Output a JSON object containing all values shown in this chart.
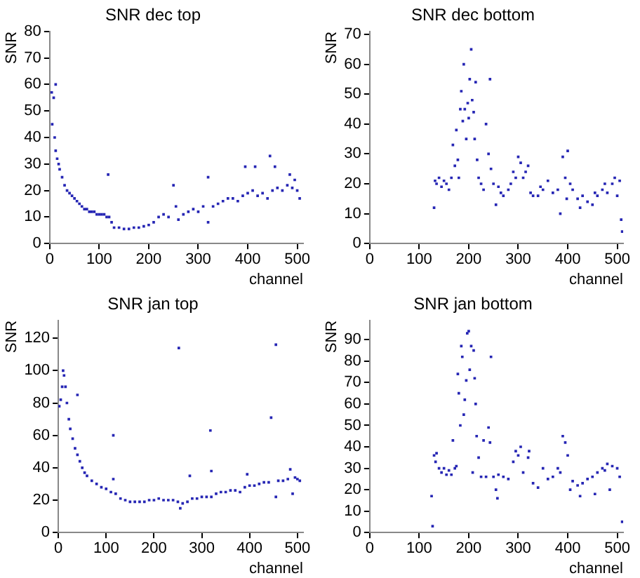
{
  "chart_data": [
    {
      "type": "scatter",
      "title": "SNR dec top",
      "xlabel": "channel",
      "ylabel": "SNR",
      "xlim": [
        0,
        512
      ],
      "xticks": [
        0,
        100,
        200,
        300,
        400,
        500
      ],
      "ylim": [
        0,
        80
      ],
      "yticks": [
        0,
        10,
        20,
        30,
        40,
        50,
        60,
        70,
        80
      ],
      "marker": "square",
      "series": [
        {
          "color": "#2626b4",
          "x": [
            4,
            5,
            8,
            10,
            12,
            12,
            15,
            18,
            20,
            25,
            30,
            35,
            40,
            45,
            50,
            55,
            60,
            65,
            70,
            75,
            80,
            85,
            90,
            95,
            100,
            105,
            110,
            115,
            118,
            120,
            125,
            130,
            140,
            150,
            160,
            170,
            180,
            190,
            200,
            210,
            220,
            230,
            240,
            250,
            255,
            260,
            270,
            280,
            290,
            300,
            310,
            320,
            320,
            330,
            340,
            350,
            360,
            370,
            380,
            390,
            395,
            400,
            410,
            415,
            420,
            430,
            440,
            445,
            450,
            455,
            460,
            470,
            480,
            485,
            490,
            495,
            500,
            505
          ],
          "values": [
            57,
            45,
            55,
            40,
            60,
            35,
            32,
            30,
            28,
            25,
            22,
            20,
            19,
            18,
            17,
            16,
            15,
            14,
            13,
            13,
            12,
            12,
            12,
            11,
            11,
            11,
            11,
            10,
            26,
            10,
            8,
            6,
            6,
            5.5,
            5.5,
            6,
            6,
            6.5,
            7,
            8,
            10,
            11,
            10,
            22,
            14,
            9,
            11,
            12,
            13,
            12,
            14,
            25,
            8,
            14,
            15,
            16,
            17,
            17,
            16,
            18,
            29,
            19,
            20,
            29,
            18,
            19,
            17,
            33,
            20,
            29,
            21,
            20,
            22,
            26,
            21,
            24,
            20,
            17
          ]
        }
      ]
    },
    {
      "type": "scatter",
      "title": "SNR dec bottom",
      "xlabel": "channel",
      "ylabel": "SNR",
      "xlim": [
        0,
        512
      ],
      "xticks": [
        0,
        100,
        200,
        300,
        400,
        500
      ],
      "ylim": [
        0,
        71
      ],
      "yticks": [
        0,
        10,
        20,
        30,
        40,
        50,
        60,
        70
      ],
      "marker": "square",
      "series": [
        {
          "color": "#2626b4",
          "x": [
            130,
            132,
            135,
            140,
            145,
            150,
            155,
            160,
            165,
            168,
            172,
            175,
            178,
            180,
            183,
            185,
            188,
            190,
            192,
            195,
            198,
            200,
            202,
            205,
            207,
            210,
            212,
            214,
            217,
            220,
            225,
            230,
            235,
            240,
            243,
            245,
            250,
            255,
            260,
            265,
            270,
            280,
            285,
            290,
            295,
            300,
            305,
            310,
            315,
            320,
            325,
            330,
            340,
            345,
            350,
            360,
            370,
            380,
            385,
            390,
            395,
            398,
            400,
            405,
            410,
            420,
            425,
            430,
            440,
            450,
            455,
            460,
            470,
            475,
            480,
            490,
            495,
            500,
            505,
            508,
            510
          ],
          "values": [
            12,
            21,
            20,
            22,
            19,
            21,
            20,
            18,
            22,
            33,
            26,
            38,
            28,
            22,
            45,
            51,
            41,
            60,
            45,
            35,
            47,
            42,
            55,
            65,
            48,
            44,
            35,
            54,
            28,
            22,
            20,
            18,
            40,
            30,
            55,
            25,
            20,
            13,
            19,
            17,
            16,
            18,
            20,
            24,
            22,
            29,
            27,
            22,
            24,
            26,
            17,
            16,
            16,
            19,
            18,
            21,
            17,
            18,
            10,
            29,
            22,
            15,
            31,
            20,
            18,
            15,
            12,
            16,
            14,
            13,
            17,
            16,
            18,
            20,
            17,
            20,
            22,
            16,
            21,
            8,
            4
          ]
        }
      ]
    },
    {
      "type": "scatter",
      "title": "SNR jan top",
      "xlabel": "channel",
      "ylabel": "SNR",
      "xlim": [
        0,
        512
      ],
      "xticks": [
        0,
        100,
        200,
        300,
        400,
        500
      ],
      "ylim": [
        0,
        131
      ],
      "yticks": [
        0,
        20,
        40,
        60,
        80,
        100,
        120
      ],
      "marker": "square",
      "series": [
        {
          "color": "#2626b4",
          "x": [
            2,
            5,
            8,
            10,
            12,
            15,
            18,
            22,
            25,
            30,
            35,
            40,
            40,
            45,
            50,
            55,
            60,
            70,
            80,
            90,
            100,
            110,
            115,
            115,
            120,
            130,
            140,
            150,
            160,
            170,
            180,
            190,
            200,
            210,
            220,
            230,
            240,
            250,
            252,
            255,
            260,
            270,
            275,
            280,
            290,
            300,
            310,
            318,
            320,
            320,
            330,
            340,
            350,
            360,
            370,
            380,
            390,
            395,
            400,
            410,
            420,
            430,
            440,
            445,
            455,
            455,
            460,
            470,
            480,
            485,
            490,
            495,
            500,
            505
          ],
          "values": [
            78,
            82,
            90,
            100,
            97,
            90,
            80,
            70,
            64,
            58,
            52,
            48,
            85,
            44,
            40,
            37,
            35,
            32,
            30,
            28,
            27,
            25,
            33,
            60,
            24,
            21,
            20,
            19,
            19,
            19,
            19,
            20,
            20,
            21,
            20,
            20,
            20,
            19,
            114,
            15,
            18,
            19,
            35,
            21,
            21,
            22,
            22,
            63,
            38,
            22,
            24,
            25,
            25,
            26,
            26,
            25,
            28,
            36,
            29,
            29,
            30,
            31,
            31,
            71,
            116,
            22,
            32,
            32,
            33,
            39,
            24,
            34,
            33,
            32
          ]
        }
      ]
    },
    {
      "type": "scatter",
      "title": "SNR jan bottom",
      "xlabel": "channel",
      "ylabel": "SNR",
      "xlim": [
        0,
        512
      ],
      "xticks": [
        0,
        100,
        200,
        300,
        400,
        500
      ],
      "ylim": [
        0,
        99
      ],
      "yticks": [
        0,
        10,
        20,
        30,
        40,
        50,
        60,
        70,
        80,
        90
      ],
      "marker": "square",
      "series": [
        {
          "color": "#2626b4",
          "x": [
            125,
            127,
            130,
            133,
            135,
            140,
            145,
            150,
            155,
            160,
            165,
            168,
            172,
            175,
            178,
            180,
            183,
            185,
            187,
            190,
            192,
            195,
            197,
            200,
            202,
            205,
            208,
            210,
            212,
            214,
            216,
            220,
            225,
            230,
            235,
            240,
            243,
            245,
            250,
            255,
            258,
            260,
            270,
            280,
            290,
            295,
            300,
            305,
            310,
            320,
            322,
            330,
            340,
            350,
            360,
            370,
            380,
            385,
            390,
            395,
            400,
            405,
            410,
            420,
            425,
            430,
            440,
            450,
            455,
            460,
            470,
            475,
            480,
            485,
            490,
            500,
            505,
            510
          ],
          "values": [
            17,
            3,
            36,
            33,
            37,
            30,
            28,
            30,
            27,
            29,
            27,
            43,
            30,
            31,
            74,
            65,
            50,
            87,
            82,
            55,
            62,
            71,
            93,
            94,
            76,
            87,
            28,
            85,
            72,
            60,
            45,
            35,
            26,
            43,
            26,
            49,
            42,
            82,
            26,
            20,
            16,
            27,
            26,
            25,
            33,
            38,
            36,
            40,
            28,
            35,
            38,
            23,
            21,
            30,
            25,
            26,
            30,
            28,
            45,
            42,
            36,
            20,
            24,
            22,
            17,
            23,
            25,
            26,
            18,
            28,
            30,
            29,
            32,
            20,
            31,
            30,
            26,
            5
          ]
        }
      ]
    }
  ]
}
